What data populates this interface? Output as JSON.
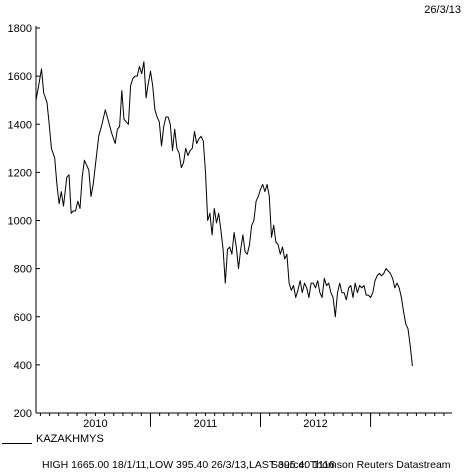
{
  "date_stamp": "26/3/13",
  "legend": {
    "label": "KAZAKHMYS"
  },
  "footer": {
    "stats": "HIGH 1665.00 18/1/11,LOW 395.40 26/3/13,LAST 395.40 1116",
    "source": "Source: Thomson Reuters Datastream"
  },
  "colors": {
    "line": "#000000",
    "axis": "#000000",
    "background": "#ffffff"
  },
  "chart_data": {
    "type": "line",
    "title": "",
    "xlabel": "",
    "ylabel": "",
    "ylim": [
      200,
      1800
    ],
    "yticks": [
      200,
      400,
      600,
      800,
      1000,
      1200,
      1400,
      1600,
      1800
    ],
    "xlim": [
      2009.46,
      2013.24
    ],
    "xtick_labels": [
      {
        "label": "2010",
        "x": 2010.0
      },
      {
        "label": "2011",
        "x": 2011.0
      },
      {
        "label": "2012",
        "x": 2012.0
      }
    ],
    "year_boundaries": [
      2010.5,
      2011.5,
      2012.5
    ],
    "grid": false,
    "legend_position": "bottom-left",
    "series": [
      {
        "name": "KAZAKHMYS",
        "points": [
          [
            2009.46,
            1500
          ],
          [
            2009.48,
            1550
          ],
          [
            2009.51,
            1630
          ],
          [
            2009.53,
            1530
          ],
          [
            2009.56,
            1490
          ],
          [
            2009.58,
            1400
          ],
          [
            2009.6,
            1300
          ],
          [
            2009.63,
            1260
          ],
          [
            2009.65,
            1150
          ],
          [
            2009.67,
            1070
          ],
          [
            2009.69,
            1120
          ],
          [
            2009.71,
            1060
          ],
          [
            2009.74,
            1180
          ],
          [
            2009.76,
            1190
          ],
          [
            2009.78,
            1030
          ],
          [
            2009.8,
            1040
          ],
          [
            2009.82,
            1040
          ],
          [
            2009.84,
            1080
          ],
          [
            2009.86,
            1050
          ],
          [
            2009.88,
            1180
          ],
          [
            2009.9,
            1250
          ],
          [
            2009.92,
            1230
          ],
          [
            2009.94,
            1210
          ],
          [
            2009.96,
            1100
          ],
          [
            2009.98,
            1150
          ],
          [
            2010.0,
            1230
          ],
          [
            2010.03,
            1350
          ],
          [
            2010.06,
            1400
          ],
          [
            2010.09,
            1460
          ],
          [
            2010.12,
            1410
          ],
          [
            2010.15,
            1360
          ],
          [
            2010.18,
            1320
          ],
          [
            2010.2,
            1380
          ],
          [
            2010.22,
            1390
          ],
          [
            2010.24,
            1540
          ],
          [
            2010.26,
            1420
          ],
          [
            2010.28,
            1410
          ],
          [
            2010.3,
            1400
          ],
          [
            2010.32,
            1560
          ],
          [
            2010.34,
            1590
          ],
          [
            2010.36,
            1600
          ],
          [
            2010.38,
            1600
          ],
          [
            2010.4,
            1640
          ],
          [
            2010.42,
            1610
          ],
          [
            2010.44,
            1660
          ],
          [
            2010.46,
            1510
          ],
          [
            2010.48,
            1570
          ],
          [
            2010.5,
            1620
          ],
          [
            2010.52,
            1560
          ],
          [
            2010.54,
            1460
          ],
          [
            2010.56,
            1430
          ],
          [
            2010.58,
            1410
          ],
          [
            2010.6,
            1310
          ],
          [
            2010.62,
            1390
          ],
          [
            2010.64,
            1430
          ],
          [
            2010.66,
            1430
          ],
          [
            2010.68,
            1400
          ],
          [
            2010.7,
            1290
          ],
          [
            2010.72,
            1380
          ],
          [
            2010.74,
            1300
          ],
          [
            2010.76,
            1280
          ],
          [
            2010.78,
            1220
          ],
          [
            2010.8,
            1240
          ],
          [
            2010.82,
            1300
          ],
          [
            2010.84,
            1270
          ],
          [
            2010.86,
            1290
          ],
          [
            2010.88,
            1300
          ],
          [
            2010.9,
            1370
          ],
          [
            2010.92,
            1320
          ],
          [
            2010.94,
            1340
          ],
          [
            2010.96,
            1350
          ],
          [
            2010.98,
            1330
          ],
          [
            2011.0,
            1200
          ],
          [
            2011.02,
            1000
          ],
          [
            2011.04,
            1030
          ],
          [
            2011.06,
            940
          ],
          [
            2011.08,
            1050
          ],
          [
            2011.1,
            990
          ],
          [
            2011.12,
            1030
          ],
          [
            2011.14,
            960
          ],
          [
            2011.16,
            880
          ],
          [
            2011.18,
            740
          ],
          [
            2011.2,
            880
          ],
          [
            2011.22,
            890
          ],
          [
            2011.24,
            860
          ],
          [
            2011.26,
            950
          ],
          [
            2011.28,
            890
          ],
          [
            2011.3,
            800
          ],
          [
            2011.32,
            880
          ],
          [
            2011.34,
            940
          ],
          [
            2011.36,
            870
          ],
          [
            2011.38,
            860
          ],
          [
            2011.4,
            900
          ],
          [
            2011.42,
            980
          ],
          [
            2011.44,
            1000
          ],
          [
            2011.46,
            1080
          ],
          [
            2011.48,
            1100
          ],
          [
            2011.5,
            1130
          ],
          [
            2011.52,
            1150
          ],
          [
            2011.54,
            1120
          ],
          [
            2011.56,
            1150
          ],
          [
            2011.58,
            1100
          ],
          [
            2011.6,
            930
          ],
          [
            2011.62,
            980
          ],
          [
            2011.64,
            910
          ],
          [
            2011.66,
            900
          ],
          [
            2011.68,
            860
          ],
          [
            2011.7,
            890
          ],
          [
            2011.72,
            840
          ],
          [
            2011.74,
            860
          ],
          [
            2011.76,
            740
          ],
          [
            2011.78,
            710
          ],
          [
            2011.8,
            730
          ],
          [
            2011.82,
            680
          ],
          [
            2011.84,
            710
          ],
          [
            2011.86,
            750
          ],
          [
            2011.88,
            700
          ],
          [
            2011.9,
            740
          ],
          [
            2011.92,
            720
          ],
          [
            2011.94,
            680
          ],
          [
            2011.96,
            740
          ],
          [
            2011.98,
            740
          ],
          [
            2012.0,
            720
          ],
          [
            2012.02,
            750
          ],
          [
            2012.04,
            700
          ],
          [
            2012.06,
            680
          ],
          [
            2012.08,
            760
          ],
          [
            2012.1,
            730
          ],
          [
            2012.12,
            740
          ],
          [
            2012.14,
            700
          ],
          [
            2012.16,
            680
          ],
          [
            2012.18,
            600
          ],
          [
            2012.2,
            700
          ],
          [
            2012.22,
            740
          ],
          [
            2012.24,
            700
          ],
          [
            2012.26,
            700
          ],
          [
            2012.28,
            670
          ],
          [
            2012.3,
            720
          ],
          [
            2012.32,
            730
          ],
          [
            2012.34,
            680
          ],
          [
            2012.36,
            740
          ],
          [
            2012.38,
            700
          ],
          [
            2012.4,
            730
          ],
          [
            2012.42,
            720
          ],
          [
            2012.44,
            730
          ],
          [
            2012.46,
            690
          ],
          [
            2012.48,
            690
          ],
          [
            2012.5,
            680
          ],
          [
            2012.52,
            700
          ],
          [
            2012.54,
            750
          ],
          [
            2012.56,
            770
          ],
          [
            2012.58,
            780
          ],
          [
            2012.6,
            770
          ],
          [
            2012.62,
            780
          ],
          [
            2012.64,
            800
          ],
          [
            2012.66,
            790
          ],
          [
            2012.68,
            780
          ],
          [
            2012.7,
            760
          ],
          [
            2012.72,
            720
          ],
          [
            2012.74,
            740
          ],
          [
            2012.76,
            720
          ],
          [
            2012.78,
            680
          ],
          [
            2012.8,
            620
          ],
          [
            2012.82,
            570
          ],
          [
            2012.84,
            550
          ],
          [
            2012.86,
            480
          ],
          [
            2012.88,
            395
          ]
        ]
      }
    ]
  }
}
